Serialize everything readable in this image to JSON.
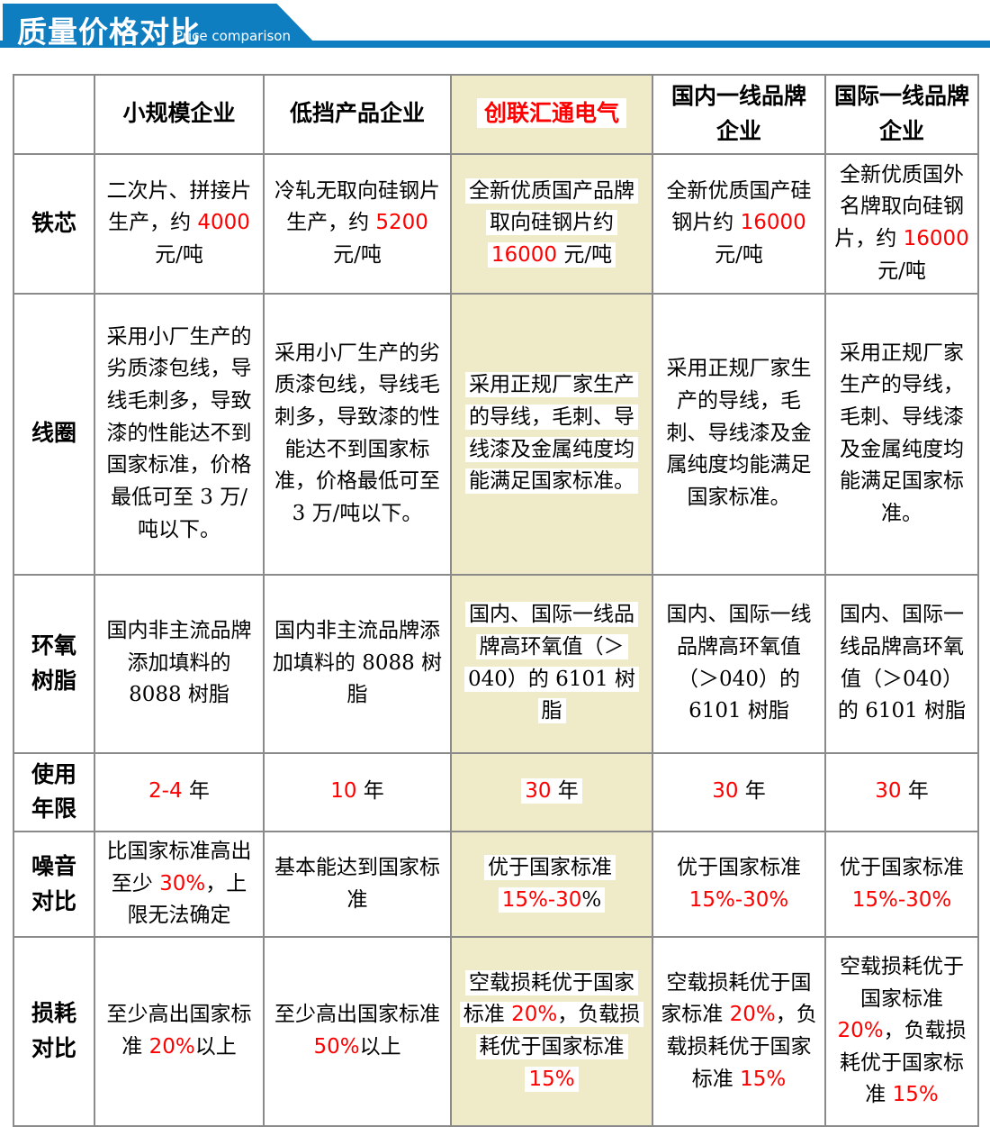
{
  "banner": {
    "title": "质量价格对比",
    "subtitle": "Price comparison",
    "color": "#0f7ec0"
  },
  "colors": {
    "accent_red": "#fe0000",
    "highlight_yellow": "#efebc8",
    "border_gray": "#8a8a8a"
  },
  "table": {
    "highlight_column_index": 3,
    "columns": [
      {
        "label": ""
      },
      {
        "label": "小规模企业"
      },
      {
        "label": "低挡产品企业"
      },
      {
        "label": "创联汇通电气",
        "accent": true
      },
      {
        "label": "国内一线品牌企业"
      },
      {
        "label": "国际一线品牌企业"
      }
    ],
    "rows": [
      {
        "label": "铁芯",
        "cells": [
          [
            {
              "t": "二次片、拼接片生产，约 "
            },
            {
              "t": "4000",
              "red": true
            },
            {
              "t": " 元/吨"
            }
          ],
          [
            {
              "t": "冷轧无取向硅钢片生产，约 "
            },
            {
              "t": "5200",
              "red": true
            },
            {
              "t": " 元/吨"
            }
          ],
          [
            {
              "t": "全新优质国产品牌取向硅钢片约 "
            },
            {
              "t": "16000",
              "red": true
            },
            {
              "t": " 元/吨"
            }
          ],
          [
            {
              "t": "全新优质国产硅钢片约 "
            },
            {
              "t": "16000",
              "red": true
            },
            {
              "t": " 元/吨"
            }
          ],
          [
            {
              "t": "全新优质国外名牌取向硅钢片，约 "
            },
            {
              "t": "16000",
              "red": true
            },
            {
              "t": " 元/吨"
            }
          ]
        ]
      },
      {
        "label": "线圈",
        "cells": [
          [
            {
              "t": "采用小厂生产的劣质漆包线，导线毛刺多，导致漆的性能达不到国家标准，价格最低可至 3 万/吨以下。"
            }
          ],
          [
            {
              "t": "采用小厂生产的劣质漆包线，导线毛刺多，导致漆的性能达不到国家标准，价格最低可至 3 万/吨以下。"
            }
          ],
          [
            {
              "t": "采用正规厂家生产的导线，毛刺、导线漆及金属纯度均能满足国家标准。"
            }
          ],
          [
            {
              "t": "采用正规厂家生产的导线，毛刺、导线漆及金属纯度均能满足国家标准。"
            }
          ],
          [
            {
              "t": "采用正规厂家生产的导线，毛刺、导线漆及金属纯度均能满足国家标准。"
            }
          ]
        ]
      },
      {
        "label": "环氧树脂",
        "cells": [
          [
            {
              "t": "国内非主流品牌添加填料的 8088 树脂"
            }
          ],
          [
            {
              "t": "国内非主流品牌添加填料的 8088 树脂"
            }
          ],
          [
            {
              "t": "国内、国际一线品牌高环氧值（＞040）的 6101 树脂"
            }
          ],
          [
            {
              "t": "国内、国际一线品牌高环氧值（＞040）的 6101 树脂"
            }
          ],
          [
            {
              "t": "国内、国际一线品牌高环氧值（＞040）的 6101 树脂"
            }
          ]
        ]
      },
      {
        "label": "使用年限",
        "cells": [
          [
            {
              "t": "2-4",
              "red": true
            },
            {
              "t": " 年"
            }
          ],
          [
            {
              "t": "10",
              "red": true
            },
            {
              "t": " 年"
            }
          ],
          [
            {
              "t": "30",
              "red": true
            },
            {
              "t": " 年"
            }
          ],
          [
            {
              "t": "30",
              "red": true
            },
            {
              "t": " 年"
            }
          ],
          [
            {
              "t": "30",
              "red": true
            },
            {
              "t": " 年"
            }
          ]
        ]
      },
      {
        "label": "噪音对比",
        "cells": [
          [
            {
              "t": "比国家标准高出至少 "
            },
            {
              "t": "30%",
              "red": true
            },
            {
              "t": "，上限无法确定"
            }
          ],
          [
            {
              "t": "基本能达到国家标准"
            }
          ],
          [
            {
              "t": "优于国家标准 "
            },
            {
              "t": "15%-30",
              "red": true
            },
            {
              "t": "%"
            }
          ],
          [
            {
              "t": "优于国家标准 "
            },
            {
              "t": "15%-30%",
              "red": true
            }
          ],
          [
            {
              "t": "优于国家标准 "
            },
            {
              "t": "15%-30%",
              "red": true
            }
          ]
        ]
      },
      {
        "label": "损耗对比",
        "cells": [
          [
            {
              "t": "至少高出国家标准 "
            },
            {
              "t": "20%",
              "red": true
            },
            {
              "t": "以上"
            }
          ],
          [
            {
              "t": "至少高出国家标准 "
            },
            {
              "t": "50%",
              "red": true
            },
            {
              "t": "以上"
            }
          ],
          [
            {
              "t": "空载损耗优于国家标准 "
            },
            {
              "t": "20%",
              "red": true
            },
            {
              "t": "，负载损耗优于国家标准 "
            },
            {
              "t": "15%",
              "red": true
            }
          ],
          [
            {
              "t": "空载损耗优于国家标准 "
            },
            {
              "t": "20%",
              "red": true
            },
            {
              "t": "，负载损耗优于国家标准 "
            },
            {
              "t": "15%",
              "red": true
            }
          ],
          [
            {
              "t": "空载损耗优于国家标准 "
            },
            {
              "t": "20%",
              "red": true
            },
            {
              "t": "，负载损耗优于国家标准 "
            },
            {
              "t": "15%",
              "red": true
            }
          ]
        ]
      }
    ]
  }
}
